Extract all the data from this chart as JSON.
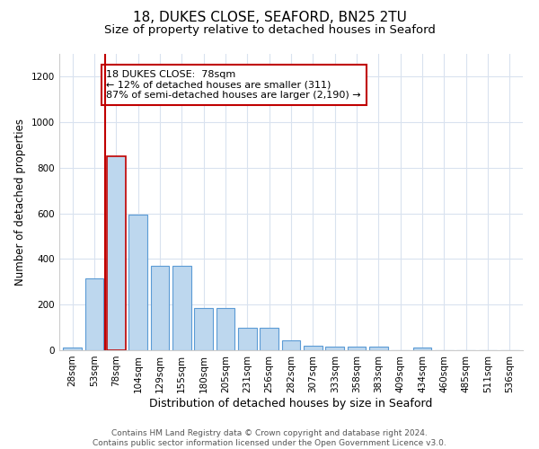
{
  "title1": "18, DUKES CLOSE, SEAFORD, BN25 2TU",
  "title2": "Size of property relative to detached houses in Seaford",
  "xlabel": "Distribution of detached houses by size in Seaford",
  "ylabel": "Number of detached properties",
  "categories": [
    "28sqm",
    "53sqm",
    "78sqm",
    "104sqm",
    "129sqm",
    "155sqm",
    "180sqm",
    "205sqm",
    "231sqm",
    "256sqm",
    "282sqm",
    "307sqm",
    "333sqm",
    "358sqm",
    "383sqm",
    "409sqm",
    "434sqm",
    "460sqm",
    "485sqm",
    "511sqm",
    "536sqm"
  ],
  "values": [
    10,
    315,
    850,
    595,
    370,
    370,
    185,
    185,
    100,
    100,
    45,
    20,
    15,
    15,
    15,
    0,
    10,
    0,
    0,
    0,
    0
  ],
  "bar_color": "#bdd7ee",
  "bar_edge_color": "#5b9bd5",
  "highlight_bar_index": 2,
  "highlight_line_color": "#c00000",
  "annotation_text": "18 DUKES CLOSE:  78sqm\n← 12% of detached houses are smaller (311)\n87% of semi-detached houses are larger (2,190) →",
  "annotation_box_color": "#ffffff",
  "annotation_box_edge_color": "#c00000",
  "ylim": [
    0,
    1300
  ],
  "yticks": [
    0,
    200,
    400,
    600,
    800,
    1000,
    1200
  ],
  "footer": "Contains HM Land Registry data © Crown copyright and database right 2024.\nContains public sector information licensed under the Open Government Licence v3.0.",
  "bg_color": "#ffffff",
  "grid_color": "#d9e2ef",
  "title1_fontsize": 11,
  "title2_fontsize": 9.5,
  "xlabel_fontsize": 9,
  "ylabel_fontsize": 8.5,
  "annotation_fontsize": 8,
  "tick_fontsize": 7.5
}
